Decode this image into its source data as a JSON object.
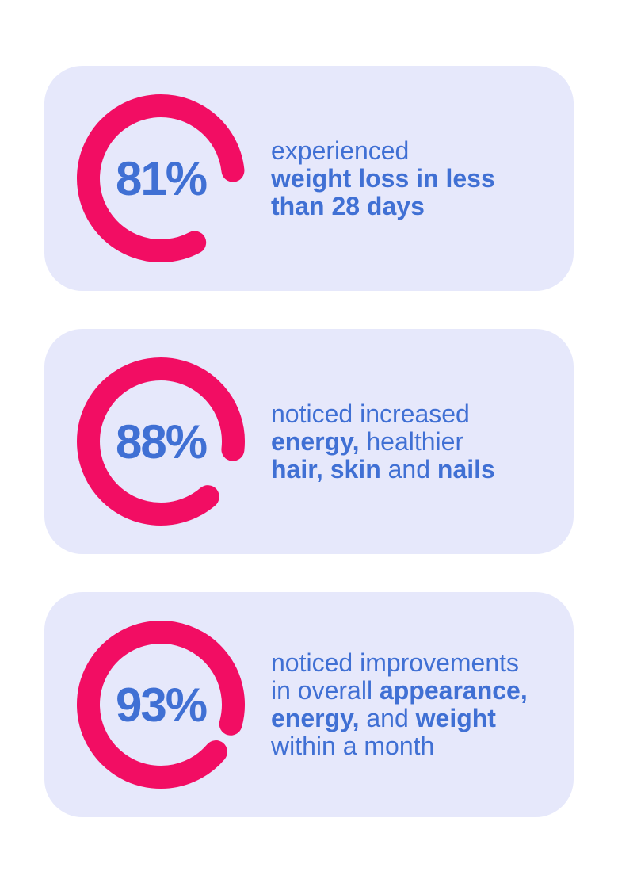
{
  "theme": {
    "page_bg": "#FFFFFF",
    "card_bg": "#E6E8FB",
    "ring_color": "#F20D63",
    "text_blue": "#4070D4"
  },
  "chart_data": [
    {
      "type": "pie",
      "percent": 81,
      "label": "experienced weight loss in less than 28 days"
    },
    {
      "type": "pie",
      "percent": 88,
      "label": "noticed increased energy, healthier hair, skin and nails"
    },
    {
      "type": "pie",
      "percent": 93,
      "label": "noticed improvements in overall appearance, energy, and weight within a month"
    }
  ],
  "cards": [
    {
      "value": 81,
      "percent_label": "81%",
      "lines": [
        {
          "segs": [
            {
              "text": "experienced",
              "bold": false
            }
          ]
        },
        {
          "segs": [
            {
              "text": "weight loss in less",
              "bold": true
            }
          ]
        },
        {
          "segs": [
            {
              "text": "than 28 days",
              "bold": true
            }
          ]
        }
      ]
    },
    {
      "value": 88,
      "percent_label": "88%",
      "lines": [
        {
          "segs": [
            {
              "text": "noticed increased",
              "bold": false
            }
          ]
        },
        {
          "segs": [
            {
              "text": "energy,",
              "bold": true
            },
            {
              "text": " healthier",
              "bold": false
            }
          ]
        },
        {
          "segs": [
            {
              "text": "hair, skin",
              "bold": true
            },
            {
              "text": " and ",
              "bold": false
            },
            {
              "text": "nails",
              "bold": true
            }
          ]
        }
      ]
    },
    {
      "value": 93,
      "percent_label": "93%",
      "lines": [
        {
          "segs": [
            {
              "text": "noticed improvements",
              "bold": false
            }
          ]
        },
        {
          "segs": [
            {
              "text": "in overall ",
              "bold": false
            },
            {
              "text": "appearance,",
              "bold": true
            }
          ]
        },
        {
          "segs": [
            {
              "text": "energy,",
              "bold": true
            },
            {
              "text": " and ",
              "bold": false
            },
            {
              "text": "weight",
              "bold": true
            }
          ]
        },
        {
          "segs": [
            {
              "text": "within a month",
              "bold": false
            }
          ]
        }
      ]
    }
  ]
}
